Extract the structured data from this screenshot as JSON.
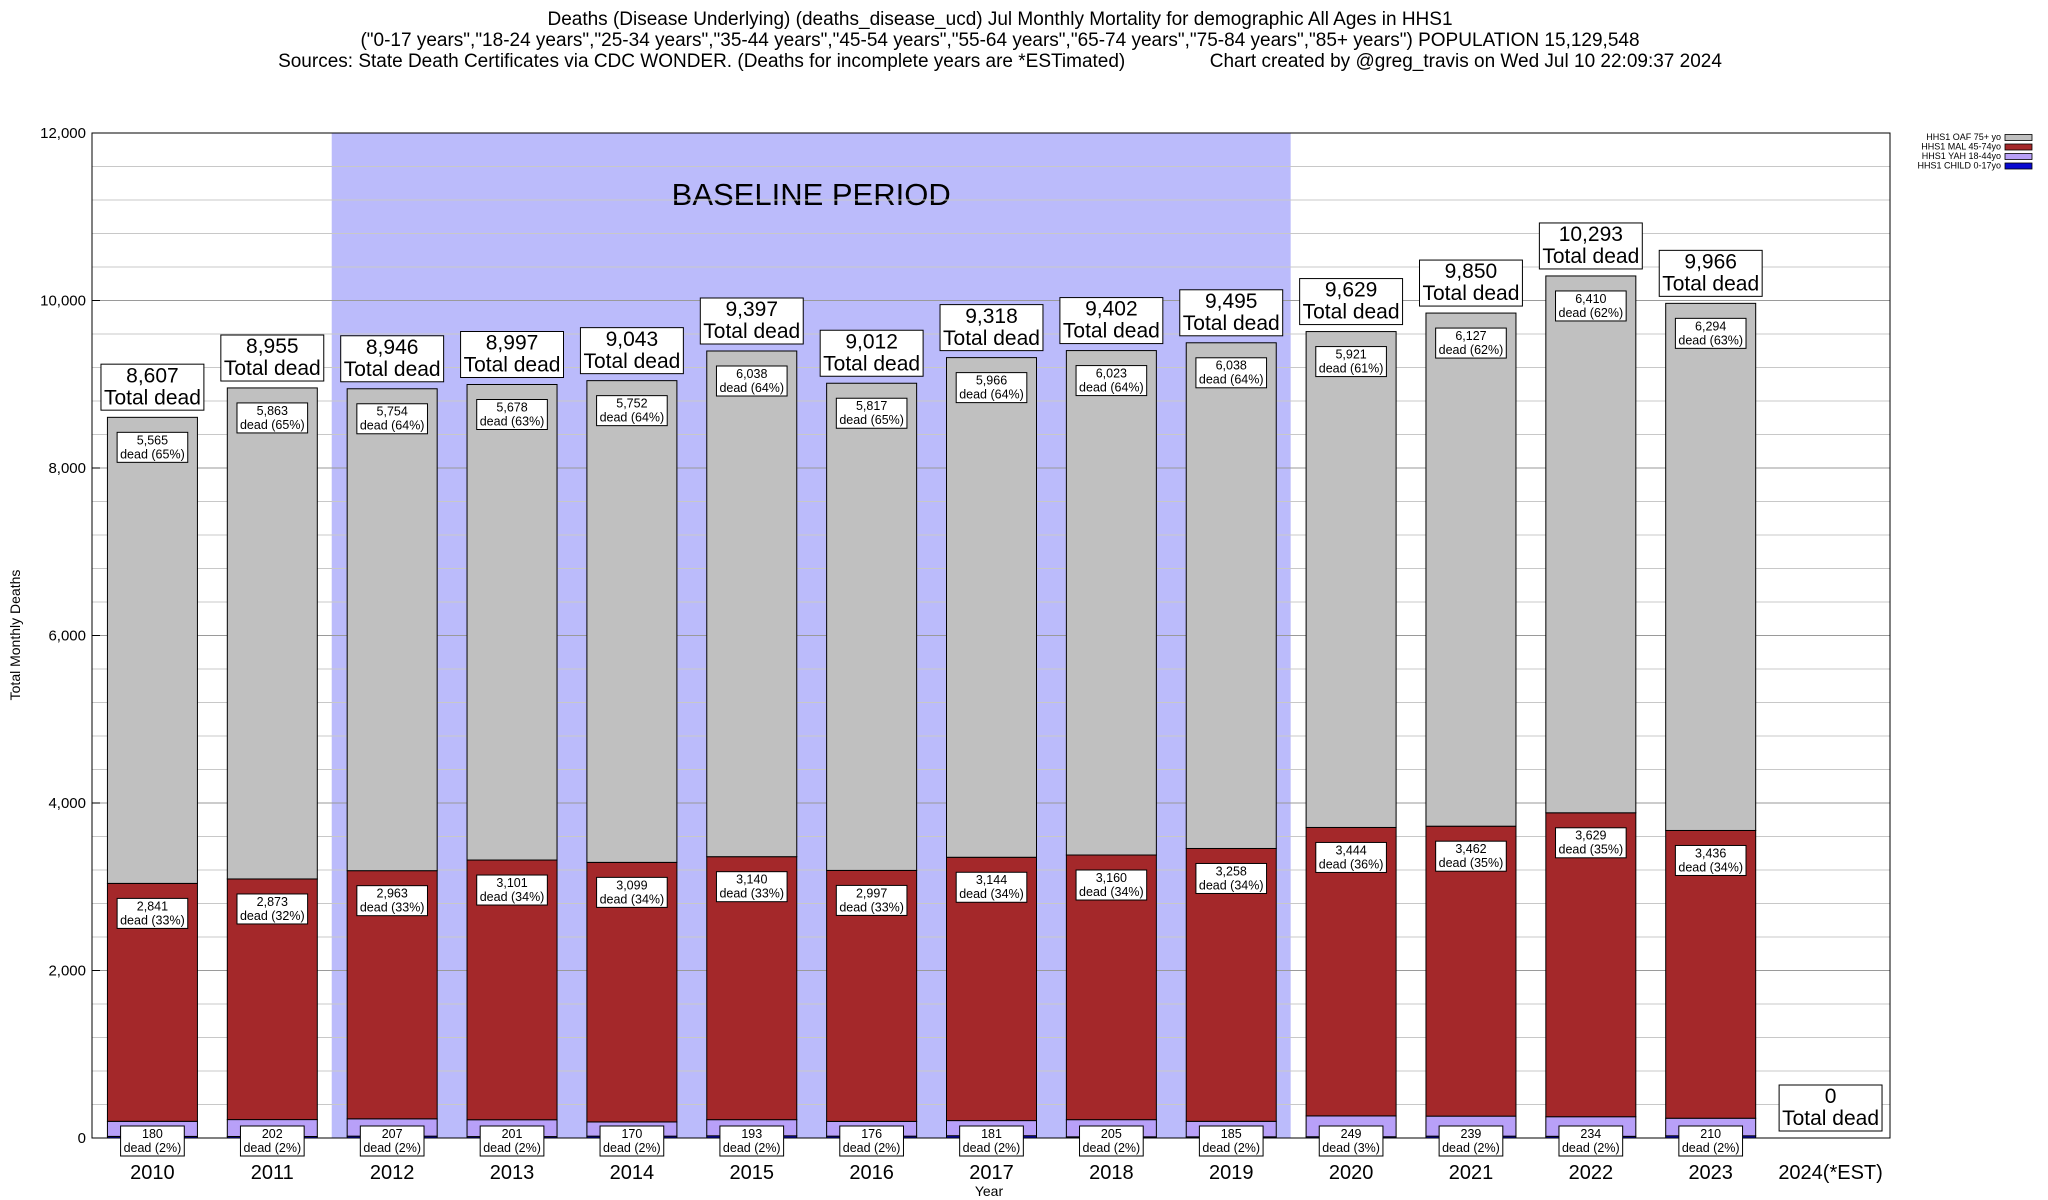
{
  "title_lines": [
    "Deaths (Disease Underlying) (deaths_disease_ucd) Jul Monthly Mortality for demographic All Ages in HHS1",
    "(\"0-17 years\",\"18-24 years\",\"25-34 years\",\"35-44 years\",\"45-54 years\",\"55-64 years\",\"65-74 years\",\"75-84 years\",\"85+ years\") POPULATION 15,129,548",
    "Sources: State Death Certificates via CDC WONDER. (Deaths for incomplete years are *ESTimated)                Chart created by @greg_travis on Wed Jul 10 22:09:37 2024"
  ],
  "chart_data": {
    "type": "bar",
    "stacked": true,
    "categories": [
      "2010",
      "2011",
      "2012",
      "2013",
      "2014",
      "2015",
      "2016",
      "2017",
      "2018",
      "2019",
      "2020",
      "2021",
      "2022",
      "2023",
      "2024(*EST)"
    ],
    "xlabel": "Year",
    "ylabel": "Total Monthly Deaths",
    "ylim": [
      0,
      12000
    ],
    "yticks": [
      0,
      2000,
      4000,
      6000,
      8000,
      10000,
      12000
    ],
    "ytick_labels": [
      "0",
      "2,000",
      "4,000",
      "6,000",
      "8,000",
      "10,000",
      "12,000"
    ],
    "grid": true,
    "legend_position": "top-right",
    "series": [
      {
        "name": "HHS1 CHILD 0-17yo",
        "color": "#0a0ad0",
        "values": [
          19,
          18,
          22,
          17,
          22,
          26,
          22,
          27,
          14,
          14,
          15,
          22,
          20,
          26,
          0
        ],
        "labels": [
          "",
          "",
          "",
          "",
          "",
          "",
          "",
          "",
          "",
          "",
          "",
          "",
          "",
          "",
          ""
        ]
      },
      {
        "name": "HHS1 YAH 18-44yo",
        "color": "#b8a0f8",
        "values": [
          180,
          202,
          207,
          201,
          170,
          193,
          176,
          181,
          205,
          185,
          249,
          239,
          234,
          210,
          0
        ],
        "labels": [
          "180",
          "202",
          "207",
          "201",
          "170",
          "193",
          "176",
          "181",
          "205",
          "185",
          "249",
          "239",
          "234",
          "210",
          ""
        ],
        "pcts": [
          "dead (2%)",
          "dead (2%)",
          "dead (2%)",
          "dead (2%)",
          "dead (2%)",
          "dead (2%)",
          "dead (2%)",
          "dead (2%)",
          "dead (2%)",
          "dead (2%)",
          "dead (3%)",
          "dead (2%)",
          "dead (2%)",
          "dead (2%)",
          ""
        ]
      },
      {
        "name": "HHS1 MAL 45-74yo",
        "color": "#a4282a",
        "values": [
          2841,
          2873,
          2963,
          3101,
          3099,
          3140,
          2997,
          3144,
          3160,
          3258,
          3444,
          3462,
          3629,
          3436,
          0
        ],
        "labels": [
          "2,841",
          "2,873",
          "2,963",
          "3,101",
          "3,099",
          "3,140",
          "2,997",
          "3,144",
          "3,160",
          "3,258",
          "3,444",
          "3,462",
          "3,629",
          "3,436",
          ""
        ],
        "pcts": [
          "dead (33%)",
          "dead (32%)",
          "dead (33%)",
          "dead (34%)",
          "dead (34%)",
          "dead (33%)",
          "dead (33%)",
          "dead (34%)",
          "dead (34%)",
          "dead (34%)",
          "dead (36%)",
          "dead (35%)",
          "dead (35%)",
          "dead (34%)",
          ""
        ]
      },
      {
        "name": "HHS1 OAF 75+ yo",
        "color": "#c0c0c0",
        "values": [
          5565,
          5863,
          5754,
          5678,
          5752,
          6038,
          5817,
          5966,
          6023,
          6038,
          5921,
          6127,
          6410,
          6294,
          0
        ],
        "labels": [
          "5,565",
          "5,863",
          "5,754",
          "5,678",
          "5,752",
          "6,038",
          "5,817",
          "5,966",
          "6,023",
          "6,038",
          "5,921",
          "6,127",
          "6,410",
          "6,294",
          ""
        ],
        "pcts": [
          "dead (65%)",
          "dead (65%)",
          "dead (64%)",
          "dead (63%)",
          "dead (64%)",
          "dead (64%)",
          "dead (65%)",
          "dead (64%)",
          "dead (64%)",
          "dead (64%)",
          "dead (61%)",
          "dead (62%)",
          "dead (62%)",
          "dead (63%)",
          ""
        ]
      }
    ],
    "totals": [
      8607,
      8955,
      8946,
      8997,
      9043,
      9397,
      9012,
      9318,
      9402,
      9495,
      9629,
      9850,
      10293,
      9966,
      0
    ],
    "total_labels": [
      "8,607",
      "8,955",
      "8,946",
      "8,997",
      "9,043",
      "9,397",
      "9,012",
      "9,318",
      "9,402",
      "9,495",
      "9,629",
      "9,850",
      "10,293",
      "9,966",
      "0"
    ],
    "total_suffix": "Total dead",
    "legend_order": [
      "HHS1 OAF 75+ yo",
      "HHS1 MAL 45-74yo",
      "HHS1 YAH 18-44yo",
      "HHS1 CHILD 0-17yo"
    ],
    "baseline": {
      "label": "BASELINE PERIOD",
      "from": "2012",
      "to": "2019",
      "color": "#bbbbfb"
    }
  }
}
